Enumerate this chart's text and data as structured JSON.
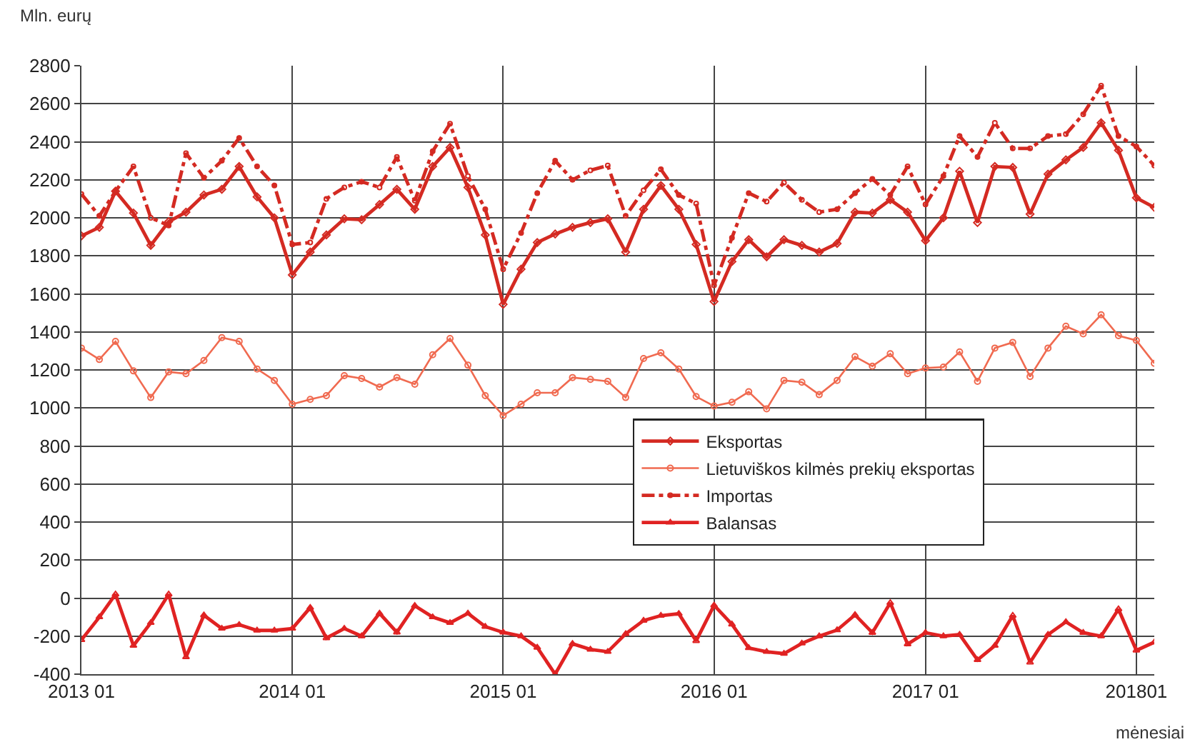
{
  "chart_data": {
    "type": "line",
    "ylabel": "Mln. eurų",
    "xlabel": "mėnesiai",
    "x": [
      "2013-01",
      "2013-02",
      "2013-03",
      "2013-04",
      "2013-05",
      "2013-06",
      "2013-07",
      "2013-08",
      "2013-09",
      "2013-10",
      "2013-11",
      "2013-12",
      "2014-01",
      "2014-02",
      "2014-03",
      "2014-04",
      "2014-05",
      "2014-06",
      "2014-07",
      "2014-08",
      "2014-09",
      "2014-10",
      "2014-11",
      "2014-12",
      "2015-01",
      "2015-02",
      "2015-03",
      "2015-04",
      "2015-05",
      "2015-06",
      "2015-07",
      "2015-08",
      "2015-09",
      "2015-10",
      "2015-11",
      "2015-12",
      "2016-01",
      "2016-02",
      "2016-03",
      "2016-04",
      "2016-05",
      "2016-06",
      "2016-07",
      "2016-08",
      "2016-09",
      "2016-10",
      "2016-11",
      "2016-12",
      "2017-01",
      "2017-02",
      "2017-03",
      "2017-04",
      "2017-05",
      "2017-06",
      "2017-07",
      "2017-08",
      "2017-09",
      "2017-10",
      "2017-11",
      "2017-12",
      "2018-01",
      "2018-02"
    ],
    "series": [
      {
        "name": "Eksportas",
        "color": "#d42a22",
        "marker": "diamond",
        "line_style": "solid",
        "values": [
          1905,
          1950,
          2140,
          2025,
          1855,
          1980,
          2030,
          2120,
          2150,
          2270,
          2110,
          2000,
          1700,
          1820,
          1910,
          1995,
          1990,
          2070,
          2150,
          2045,
          2270,
          2370,
          2160,
          1910,
          1545,
          1730,
          1870,
          1915,
          1950,
          1975,
          1995,
          1820,
          2045,
          2170,
          2045,
          1860,
          1560,
          1770,
          1885,
          1795,
          1885,
          1855,
          1820,
          1865,
          2030,
          2025,
          2095,
          2030,
          1880,
          2000,
          2245,
          1975,
          2270,
          2265,
          2020,
          2230,
          2305,
          2370,
          2500,
          2355,
          2105,
          2055
        ]
      },
      {
        "name": "Lietuviškos kilmės prekių eksportas",
        "color": "#f06a50",
        "marker": "circle",
        "line_style": "solid",
        "values": [
          1315,
          1255,
          1350,
          1195,
          1055,
          1190,
          1180,
          1250,
          1370,
          1350,
          1205,
          1145,
          1020,
          1045,
          1065,
          1170,
          1155,
          1110,
          1160,
          1125,
          1280,
          1365,
          1225,
          1065,
          960,
          1020,
          1080,
          1080,
          1160,
          1150,
          1140,
          1055,
          1260,
          1290,
          1205,
          1060,
          1010,
          1030,
          1085,
          995,
          1145,
          1135,
          1070,
          1145,
          1270,
          1220,
          1285,
          1180,
          1210,
          1215,
          1295,
          1140,
          1315,
          1345,
          1165,
          1315,
          1430,
          1390,
          1490,
          1380,
          1355,
          1235
        ]
      },
      {
        "name": "Importas",
        "color": "#d42a22",
        "marker": "circle",
        "line_style": "dashed",
        "values": [
          2125,
          2010,
          2140,
          2270,
          2000,
          1960,
          2340,
          2210,
          2300,
          2420,
          2270,
          2170,
          1860,
          1870,
          2100,
          2160,
          2190,
          2160,
          2320,
          2090,
          2350,
          2495,
          2220,
          2045,
          1730,
          1920,
          2130,
          2300,
          2200,
          2250,
          2275,
          2010,
          2145,
          2255,
          2120,
          2075,
          1645,
          1895,
          2130,
          2085,
          2185,
          2095,
          2030,
          2045,
          2130,
          2205,
          2120,
          2270,
          2070,
          2220,
          2430,
          2320,
          2500,
          2365,
          2365,
          2430,
          2440,
          2545,
          2695,
          2430,
          2375,
          2275
        ]
      },
      {
        "name": "Balansas",
        "color": "#e02222",
        "marker": "triangle",
        "line_style": "solid",
        "values": [
          -220,
          -100,
          20,
          -250,
          -130,
          20,
          -310,
          -90,
          -160,
          -140,
          -170,
          -170,
          -160,
          -50,
          -210,
          -160,
          -200,
          -80,
          -180,
          -40,
          -100,
          -130,
          -80,
          -150,
          -180,
          -200,
          -260,
          -400,
          -240,
          -270,
          -282,
          -188,
          -118,
          -92,
          -82,
          -225,
          -38,
          -138,
          -262,
          -282,
          -292,
          -238,
          -200,
          -168,
          -88,
          -182,
          -25,
          -242,
          -182,
          -200,
          -192,
          -325,
          -250,
          -92,
          -338,
          -192,
          -125,
          -182,
          -200,
          -58,
          -275,
          -232
        ]
      }
    ],
    "xlim": [
      "2013-01",
      "2018-02"
    ],
    "xticks": [
      {
        "value": "2013-01",
        "label": "2013 01"
      },
      {
        "value": "2014-01",
        "label": "2014 01"
      },
      {
        "value": "2015-01",
        "label": "2015 01"
      },
      {
        "value": "2016-01",
        "label": "2016 01"
      },
      {
        "value": "2017-01",
        "label": "2017 01"
      },
      {
        "value": "2018-01",
        "label": "201801"
      }
    ],
    "ylim": [
      -400,
      2800
    ],
    "yticks": [
      -400,
      -200,
      0,
      200,
      400,
      600,
      800,
      1000,
      1200,
      1400,
      1600,
      1800,
      2000,
      2200,
      2400,
      2600,
      2800
    ],
    "grid": true,
    "legend": "right"
  }
}
